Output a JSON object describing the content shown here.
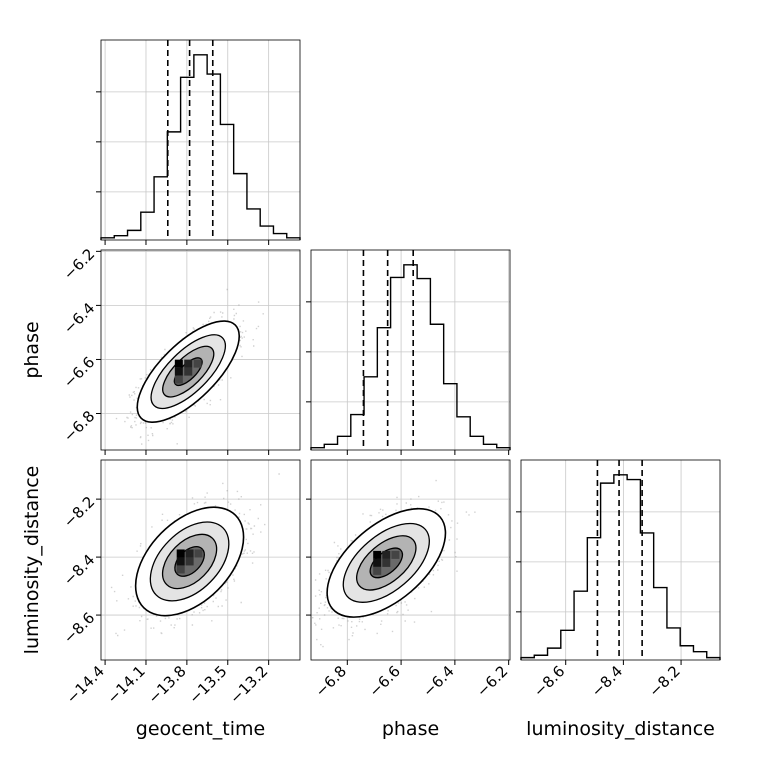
{
  "chart_data": {
    "type": "corner",
    "parameters": [
      "geocent_time",
      "phase",
      "luminosity_distance"
    ],
    "axis_ranges": {
      "geocent_time": [
        -14.43,
        -12.97
      ],
      "phase": [
        -6.935,
        -6.195
      ],
      "luminosity_distance": [
        -8.755,
        -8.065
      ]
    },
    "ticks": {
      "geocent_time": [
        -14.4,
        -14.1,
        -13.8,
        -13.5,
        -13.2
      ],
      "phase": [
        -6.8,
        -6.6,
        -6.4,
        -6.2
      ],
      "luminosity_distance": [
        -8.6,
        -8.4,
        -8.2
      ]
    },
    "tick_labels": {
      "geocent_time": [
        "−14.4",
        "−14.1",
        "−13.8",
        "−13.5",
        "−13.2"
      ],
      "phase": [
        "−6.8",
        "−6.6",
        "−6.4",
        "−6.2"
      ],
      "luminosity_distance": [
        "−8.6",
        "−8.4",
        "−8.2"
      ]
    },
    "quantiles": {
      "geocent_time": [
        -13.94,
        -13.78,
        -13.61
      ],
      "phase": [
        -6.74,
        -6.65,
        -6.555
      ],
      "luminosity_distance": [
        -8.49,
        -8.415,
        -8.335
      ]
    },
    "histograms": {
      "geocent_time": [
        2,
        4,
        9,
        26,
        59,
        101,
        152,
        173,
        155,
        108,
        62,
        29,
        13,
        6,
        2
      ],
      "phase": [
        2,
        5,
        12,
        31,
        64,
        107,
        151,
        162,
        150,
        110,
        58,
        29,
        12,
        5,
        2
      ],
      "luminosity_distance": [
        2,
        4,
        10,
        25,
        58,
        103,
        149,
        156,
        152,
        107,
        61,
        27,
        12,
        7,
        2
      ]
    },
    "density_peaks": [
      {
        "x": "geocent_time",
        "y": "phase",
        "mean": [
          -13.79,
          -6.645
        ],
        "sd": [
          0.17,
          0.085
        ],
        "corr": 0.7
      },
      {
        "x": "geocent_time",
        "y": "luminosity_distance",
        "mean": [
          -13.78,
          -8.415
        ],
        "sd": [
          0.18,
          0.085
        ],
        "corr": 0.45
      },
      {
        "x": "phase",
        "y": "luminosity_distance",
        "mean": [
          -6.655,
          -8.42
        ],
        "sd": [
          0.1,
          0.085
        ],
        "corr": 0.55
      }
    ],
    "grid": true,
    "xlabels": [
      "geocent_time",
      "phase",
      "luminosity_distance"
    ],
    "ylabels": [
      "",
      "phase",
      "luminosity_distance"
    ]
  }
}
